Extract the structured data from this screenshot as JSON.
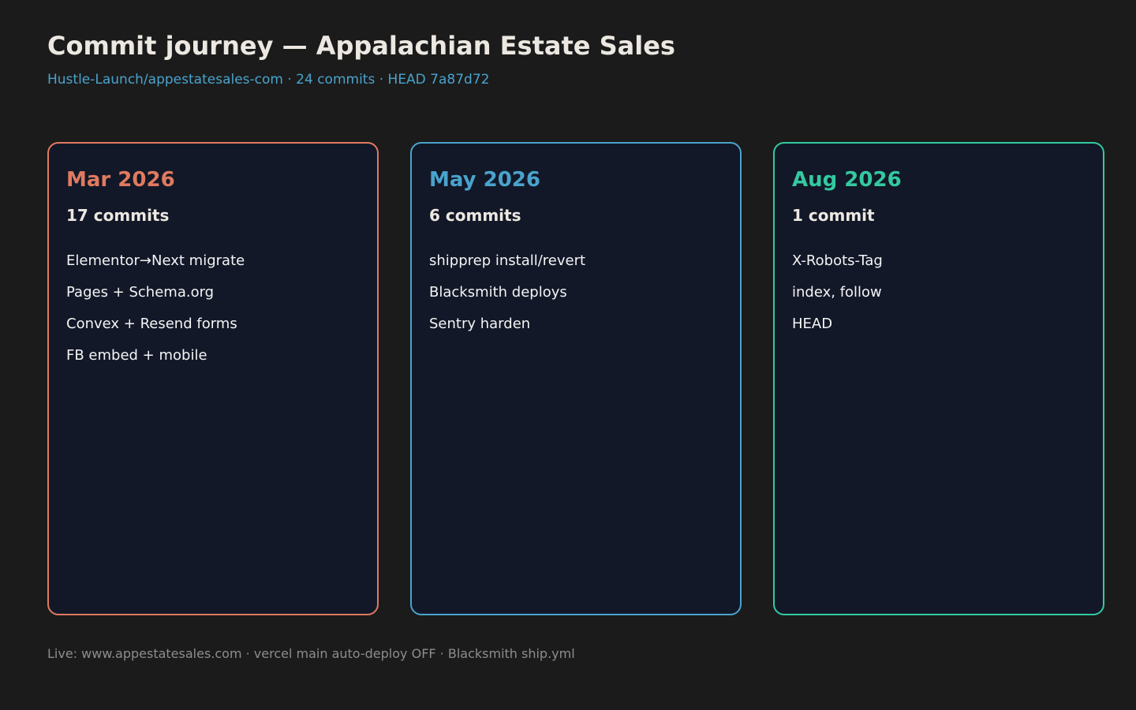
{
  "header": {
    "title": "Commit journey — Appalachian Estate Sales",
    "subtitle": "Hustle-Launch/appestatesales-com · 24 commits · HEAD 7a87d72"
  },
  "cards": [
    {
      "month": "Mar 2026",
      "count": "17 commits",
      "color": "#e07a5f",
      "items": [
        "Elementor→Next migrate",
        "Pages + Schema.org",
        "Convex + Resend forms",
        "FB embed + mobile"
      ]
    },
    {
      "month": "May 2026",
      "count": "6 commits",
      "color": "#4aa3cc",
      "items": [
        "shipprep install/revert",
        "Blacksmith deploys",
        "Sentry harden"
      ]
    },
    {
      "month": "Aug 2026",
      "count": "1 commit",
      "color": "#34c9a0",
      "items": [
        "X-Robots-Tag",
        "index, follow",
        "HEAD"
      ]
    }
  ],
  "footer": {
    "text": "Live: www.appestatesales.com · vercel main auto-deploy OFF · Blacksmith ship.yml"
  }
}
